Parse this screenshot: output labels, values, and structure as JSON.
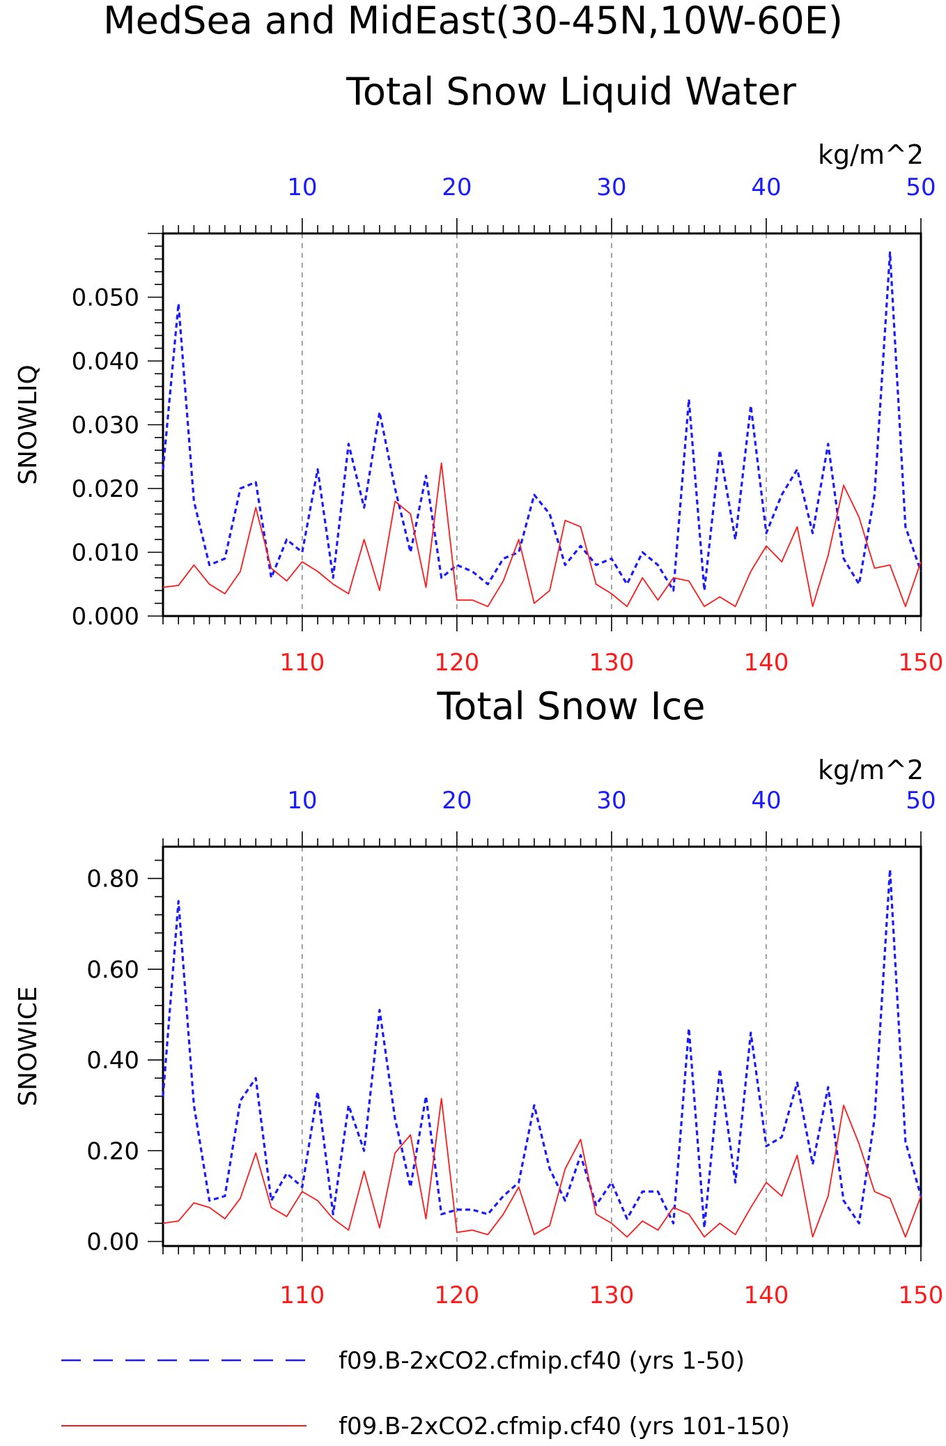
{
  "page": {
    "title": "MedSea and MidEast(30-45N,10W-60E)"
  },
  "colors": {
    "series1": "#1a1aff",
    "series2": "#ff1a1a",
    "axis": "#000000",
    "grid": "#666666"
  },
  "legend": {
    "items": [
      {
        "label": "f09.B-2xCO2.cfmip.cf40 (yrs 1-50)",
        "color": "#1a1aff",
        "style": "dashed"
      },
      {
        "label": "f09.B-2xCO2.cfmip.cf40 (yrs 101-150)",
        "color": "#ff1a1a",
        "style": "solid"
      }
    ]
  },
  "chart_data": [
    {
      "type": "line",
      "title": "Total Snow Liquid Water",
      "units": "kg/m^2",
      "ylabel": "SNOWLIQ",
      "ylim": [
        0,
        0.06
      ],
      "yticks": [
        0.0,
        0.01,
        0.02,
        0.03,
        0.04,
        0.05
      ],
      "ytick_labels": [
        "0.000",
        "0.010",
        "0.020",
        "0.030",
        "0.040",
        "0.050"
      ],
      "top_x": {
        "range": [
          1,
          50
        ],
        "ticks": [
          10,
          20,
          30,
          40,
          50
        ],
        "tick_labels": [
          "10",
          "20",
          "30",
          "40",
          "50"
        ]
      },
      "bottom_x": {
        "range": [
          101,
          150
        ],
        "ticks": [
          110,
          120,
          130,
          140,
          150
        ],
        "tick_labels": [
          "110",
          "120",
          "130",
          "140",
          "150"
        ]
      },
      "gridlines_x": [
        10,
        20,
        30,
        40
      ],
      "series": [
        {
          "values": [
            0.023,
            0.049,
            0.018,
            0.008,
            0.009,
            0.02,
            0.021,
            0.006,
            0.012,
            0.01,
            0.023,
            0.006,
            0.027,
            0.017,
            0.032,
            0.02,
            0.01,
            0.022,
            0.006,
            0.008,
            0.007,
            0.005,
            0.009,
            0.01,
            0.019,
            0.016,
            0.008,
            0.011,
            0.008,
            0.009,
            0.005,
            0.01,
            0.008,
            0.004,
            0.034,
            0.004,
            0.026,
            0.012,
            0.033,
            0.013,
            0.019,
            0.023,
            0.013,
            0.027,
            0.009,
            0.005,
            0.019,
            0.057,
            0.014,
            0.007
          ]
        },
        {
          "values": [
            0.0045,
            0.0048,
            0.008,
            0.005,
            0.0035,
            0.007,
            0.017,
            0.0075,
            0.0055,
            0.0085,
            0.007,
            0.005,
            0.0035,
            0.012,
            0.004,
            0.018,
            0.016,
            0.0045,
            0.024,
            0.0025,
            0.0025,
            0.0015,
            0.0055,
            0.012,
            0.002,
            0.004,
            0.015,
            0.014,
            0.005,
            0.0035,
            0.0015,
            0.006,
            0.0025,
            0.006,
            0.0055,
            0.0015,
            0.003,
            0.0015,
            0.007,
            0.011,
            0.0085,
            0.014,
            0.0015,
            0.0095,
            0.0205,
            0.0155,
            0.0075,
            0.008,
            0.0015,
            0.0085
          ]
        }
      ]
    },
    {
      "type": "line",
      "title": "Total Snow Ice",
      "units": "kg/m^2",
      "ylabel": "SNOWICE",
      "ylim": [
        -0.01,
        0.87
      ],
      "yticks": [
        0.0,
        0.2,
        0.4,
        0.6,
        0.8
      ],
      "ytick_labels": [
        "0.00",
        "0.20",
        "0.40",
        "0.60",
        "0.80"
      ],
      "top_x": {
        "range": [
          1,
          50
        ],
        "ticks": [
          10,
          20,
          30,
          40,
          50
        ],
        "tick_labels": [
          "10",
          "20",
          "30",
          "40",
          "50"
        ]
      },
      "bottom_x": {
        "range": [
          101,
          150
        ],
        "ticks": [
          110,
          120,
          130,
          140,
          150
        ],
        "tick_labels": [
          "110",
          "120",
          "130",
          "140",
          "150"
        ]
      },
      "gridlines_x": [
        10,
        20,
        30,
        40
      ],
      "series": [
        {
          "values": [
            0.32,
            0.75,
            0.3,
            0.09,
            0.1,
            0.31,
            0.36,
            0.09,
            0.15,
            0.12,
            0.33,
            0.06,
            0.3,
            0.2,
            0.51,
            0.27,
            0.12,
            0.32,
            0.06,
            0.07,
            0.07,
            0.06,
            0.1,
            0.13,
            0.3,
            0.16,
            0.09,
            0.19,
            0.08,
            0.13,
            0.05,
            0.11,
            0.11,
            0.04,
            0.47,
            0.03,
            0.38,
            0.13,
            0.46,
            0.21,
            0.23,
            0.35,
            0.17,
            0.34,
            0.09,
            0.04,
            0.27,
            0.82,
            0.22,
            0.1
          ]
        },
        {
          "values": [
            0.04,
            0.045,
            0.085,
            0.075,
            0.05,
            0.095,
            0.195,
            0.075,
            0.055,
            0.11,
            0.09,
            0.05,
            0.025,
            0.155,
            0.03,
            0.195,
            0.235,
            0.05,
            0.315,
            0.02,
            0.025,
            0.015,
            0.06,
            0.12,
            0.015,
            0.035,
            0.16,
            0.225,
            0.06,
            0.04,
            0.01,
            0.045,
            0.025,
            0.075,
            0.06,
            0.01,
            0.04,
            0.015,
            0.075,
            0.13,
            0.1,
            0.19,
            0.01,
            0.1,
            0.3,
            0.215,
            0.11,
            0.095,
            0.01,
            0.1
          ]
        }
      ]
    }
  ]
}
